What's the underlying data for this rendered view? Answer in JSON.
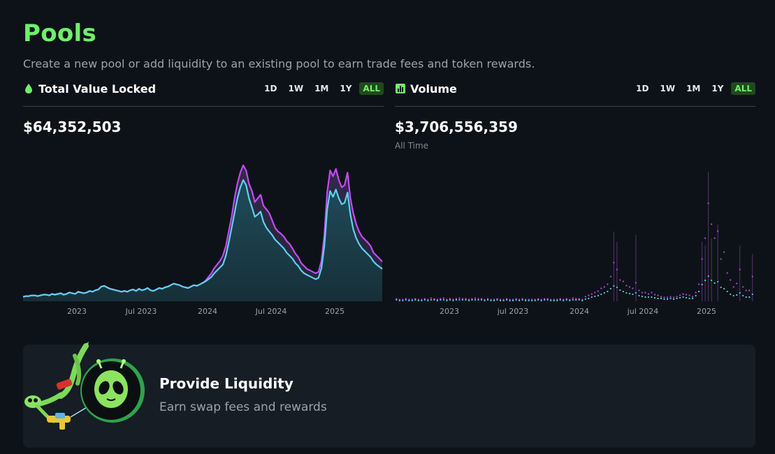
{
  "page": {
    "title": "Pools",
    "subtitle": "Create a new pool or add liquidity to an existing pool to earn trade fees and token rewards."
  },
  "tvl": {
    "title": "Total Value Locked",
    "icon": "droplet-icon",
    "value": "$64,352,503",
    "ranges": [
      "1D",
      "1W",
      "1M",
      "1Y",
      "ALL"
    ],
    "active_range": "ALL"
  },
  "volume": {
    "title": "Volume",
    "icon": "bar-chart-icon",
    "value": "$3,706,556,359",
    "caption": "All Time",
    "ranges": [
      "1D",
      "1W",
      "1M",
      "1Y",
      "ALL"
    ],
    "active_range": "ALL"
  },
  "card": {
    "title": "Provide Liquidity",
    "subtitle": "Earn swap fees and rewards"
  },
  "colors": {
    "accent": "#6ef06a",
    "series_a": "#c44bf2",
    "series_b": "#5fd0ee"
  },
  "chart_data": [
    {
      "type": "area",
      "x_ticks": [
        "2023",
        "Jul 2023",
        "2024",
        "Jul 2024",
        "2025"
      ],
      "series": [
        {
          "values": [
            6,
            7,
            7,
            8,
            8,
            7,
            8,
            9,
            9,
            8,
            10,
            9,
            10,
            11,
            9,
            10,
            12,
            11,
            10,
            13,
            12,
            11,
            12,
            14,
            13,
            15,
            16,
            20,
            21,
            19,
            17,
            16,
            15,
            14,
            13,
            14,
            13,
            15,
            16,
            14,
            17,
            15,
            16,
            18,
            15,
            14,
            16,
            18,
            17,
            19,
            20,
            22,
            24,
            23,
            22,
            20,
            19,
            18,
            20,
            22,
            21,
            23,
            25,
            28,
            33,
            38,
            45,
            50,
            55,
            62,
            75,
            95,
            115,
            140,
            160,
            175,
            185,
            178,
            160,
            150,
            135,
            140,
            145,
            130,
            125,
            120,
            110,
            100,
            95,
            92,
            88,
            82,
            78,
            72,
            65,
            60,
            52,
            48,
            44,
            42,
            40,
            38,
            40,
            55,
            90,
            148,
            178,
            170,
            180,
            165,
            155,
            158,
            175,
            140,
            120,
            105,
            95,
            88,
            84,
            80,
            75,
            66,
            62,
            58,
            54
          ]
        },
        {
          "values": [
            6,
            7,
            7,
            8,
            8,
            7,
            8,
            9,
            9,
            8,
            10,
            9,
            10,
            11,
            9,
            10,
            12,
            11,
            10,
            13,
            12,
            11,
            12,
            14,
            13,
            15,
            16,
            20,
            21,
            19,
            17,
            16,
            15,
            14,
            13,
            14,
            13,
            15,
            16,
            14,
            17,
            15,
            16,
            18,
            15,
            14,
            16,
            18,
            17,
            19,
            20,
            22,
            24,
            23,
            22,
            20,
            19,
            18,
            20,
            22,
            21,
            23,
            25,
            27,
            30,
            33,
            38,
            42,
            46,
            50,
            62,
            80,
            100,
            120,
            140,
            155,
            165,
            158,
            140,
            128,
            115,
            118,
            122,
            108,
            100,
            95,
            90,
            84,
            80,
            76,
            72,
            66,
            62,
            58,
            52,
            48,
            42,
            38,
            36,
            34,
            32,
            30,
            32,
            45,
            75,
            125,
            150,
            142,
            152,
            140,
            132,
            134,
            148,
            118,
            98,
            86,
            78,
            72,
            68,
            64,
            60,
            54,
            50,
            47,
            44
          ]
        }
      ]
    },
    {
      "type": "bar",
      "x_ticks": [
        "2023",
        "jul 2023",
        "2024",
        "jul 2024",
        "2025"
      ],
      "series": [
        {
          "values": [
            3,
            2,
            2,
            3,
            2,
            2,
            3,
            2,
            2,
            3,
            2,
            4,
            3,
            2,
            3,
            4,
            2,
            3,
            2,
            3,
            4,
            3,
            3,
            2,
            3,
            4,
            3,
            3,
            2,
            3,
            2,
            2,
            3,
            2,
            2,
            3,
            2,
            2,
            3,
            2,
            3,
            2,
            2,
            2,
            2,
            3,
            2,
            3,
            3,
            2,
            2,
            2,
            3,
            2,
            3,
            2,
            4,
            3,
            3,
            2,
            6,
            8,
            10,
            12,
            14,
            18,
            20,
            24,
            35,
            55,
            45,
            30,
            28,
            22,
            20,
            18,
            26,
            15,
            12,
            12,
            10,
            12,
            9,
            8,
            6,
            5,
            5,
            6,
            5,
            6,
            8,
            10,
            9,
            8,
            6,
            12,
            24,
            60,
            90,
            140,
            110,
            90,
            100,
            60,
            70,
            40,
            30,
            20,
            25,
            45,
            20,
            15,
            15,
            35
          ],
          "spikes": [
            0,
            0,
            0,
            0,
            0,
            0,
            0,
            0,
            0,
            0,
            0,
            0,
            0,
            0,
            0,
            0,
            0,
            0,
            0,
            0,
            0,
            0,
            0,
            0,
            0,
            0,
            0,
            0,
            0,
            0,
            0,
            0,
            0,
            0,
            0,
            0,
            0,
            0,
            0,
            0,
            0,
            0,
            0,
            0,
            0,
            0,
            0,
            0,
            0,
            0,
            0,
            0,
            0,
            0,
            0,
            0,
            0,
            0,
            0,
            0,
            0,
            0,
            0,
            0,
            0,
            0,
            0,
            0,
            0,
            100,
            85,
            0,
            0,
            0,
            0,
            0,
            95,
            0,
            0,
            0,
            0,
            0,
            0,
            0,
            0,
            0,
            0,
            0,
            0,
            0,
            0,
            0,
            0,
            0,
            0,
            0,
            0,
            85,
            80,
            185,
            90,
            0,
            110,
            0,
            0,
            0,
            0,
            0,
            0,
            80,
            0,
            0,
            0,
            68
          ]
        },
        {
          "values": [
            2,
            1,
            1,
            2,
            1,
            1,
            2,
            1,
            1,
            2,
            1,
            2,
            2,
            1,
            2,
            2,
            1,
            2,
            1,
            2,
            2,
            2,
            2,
            1,
            2,
            2,
            2,
            2,
            1,
            2,
            1,
            1,
            2,
            1,
            1,
            2,
            1,
            1,
            2,
            1,
            2,
            1,
            1,
            1,
            1,
            2,
            1,
            2,
            2,
            1,
            1,
            1,
            2,
            1,
            2,
            1,
            2,
            2,
            2,
            1,
            3,
            4,
            6,
            7,
            8,
            10,
            12,
            14,
            18,
            22,
            20,
            16,
            14,
            12,
            11,
            10,
            12,
            8,
            7,
            6,
            6,
            6,
            5,
            4,
            4,
            3,
            3,
            4,
            3,
            4,
            5,
            6,
            5,
            4,
            4,
            8,
            14,
            24,
            30,
            36,
            30,
            26,
            28,
            20,
            18,
            14,
            10,
            8,
            9,
            12,
            8,
            6,
            6,
            10
          ]
        }
      ]
    }
  ]
}
